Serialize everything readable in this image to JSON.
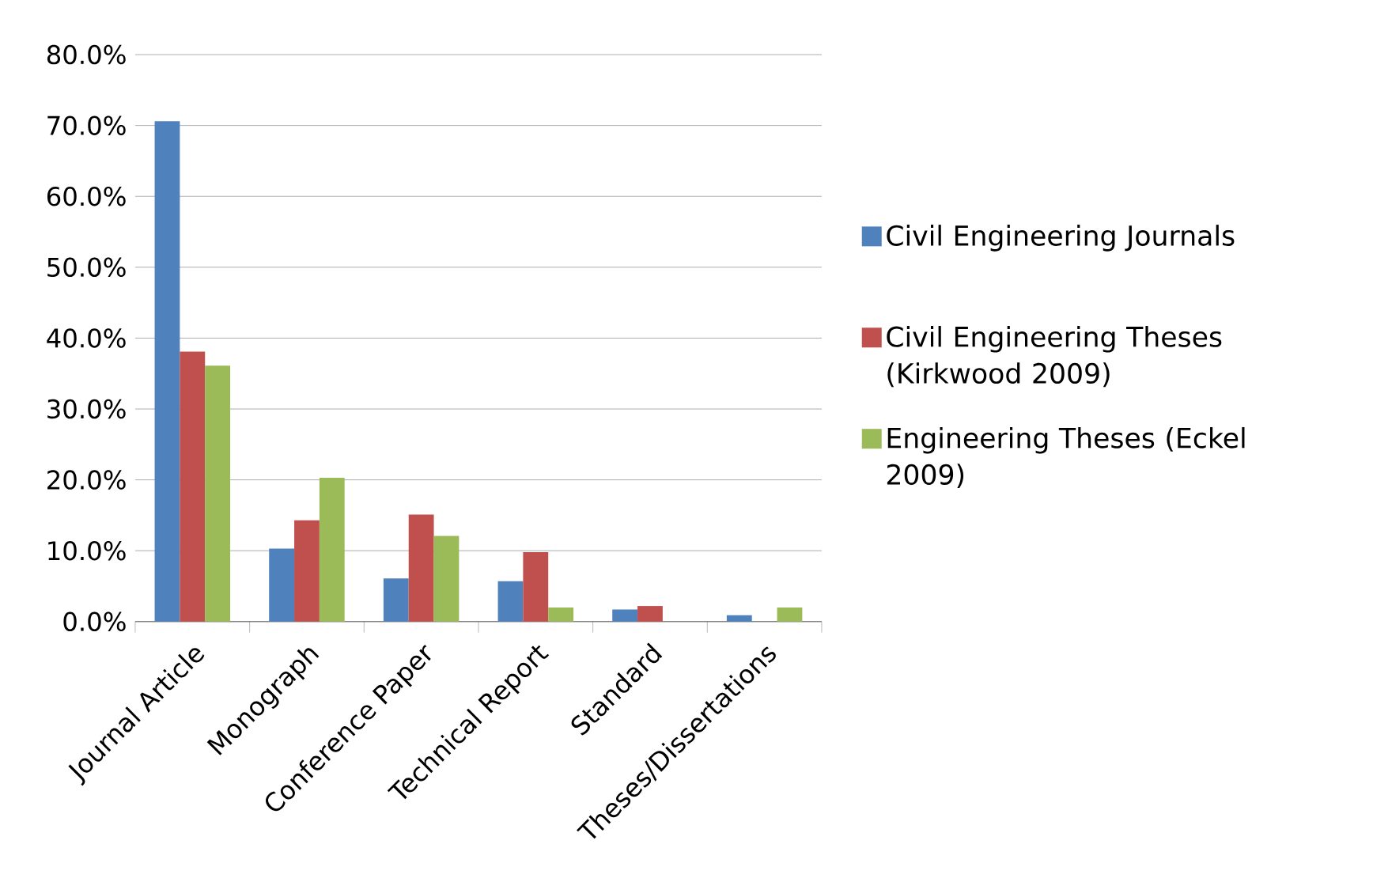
{
  "chart_data": {
    "type": "bar",
    "categories": [
      "Journal Article",
      "Monograph",
      "Conference Paper",
      "Technical Report",
      "Standard",
      "Theses/Dissertations"
    ],
    "series": [
      {
        "name": "Civil Engineering Journals",
        "color": "#4f81bd",
        "values": [
          70.6,
          10.3,
          6.1,
          5.7,
          1.7,
          0.9
        ]
      },
      {
        "name": "Civil Engineering Theses (Kirkwood 2009)",
        "color": "#c0504d",
        "values": [
          38.1,
          14.3,
          15.1,
          9.8,
          2.2,
          0
        ]
      },
      {
        "name": "Engineering Theses (Eckel 2009)",
        "color": "#9bbb59",
        "values": [
          36.1,
          20.3,
          12.1,
          2.0,
          0,
          2.0
        ]
      }
    ],
    "ylim": [
      0,
      80
    ],
    "yticks": [
      {
        "value": 0,
        "label": "0.0%"
      },
      {
        "value": 10,
        "label": "10.0%"
      },
      {
        "value": 20,
        "label": "20.0%"
      },
      {
        "value": 30,
        "label": "30.0%"
      },
      {
        "value": 40,
        "label": "40.0%"
      },
      {
        "value": 50,
        "label": "50.0%"
      },
      {
        "value": 60,
        "label": "60.0%"
      },
      {
        "value": 70,
        "label": "70.0%"
      },
      {
        "value": 80,
        "label": "80.0%"
      }
    ],
    "grid": "y",
    "legend": "right"
  }
}
